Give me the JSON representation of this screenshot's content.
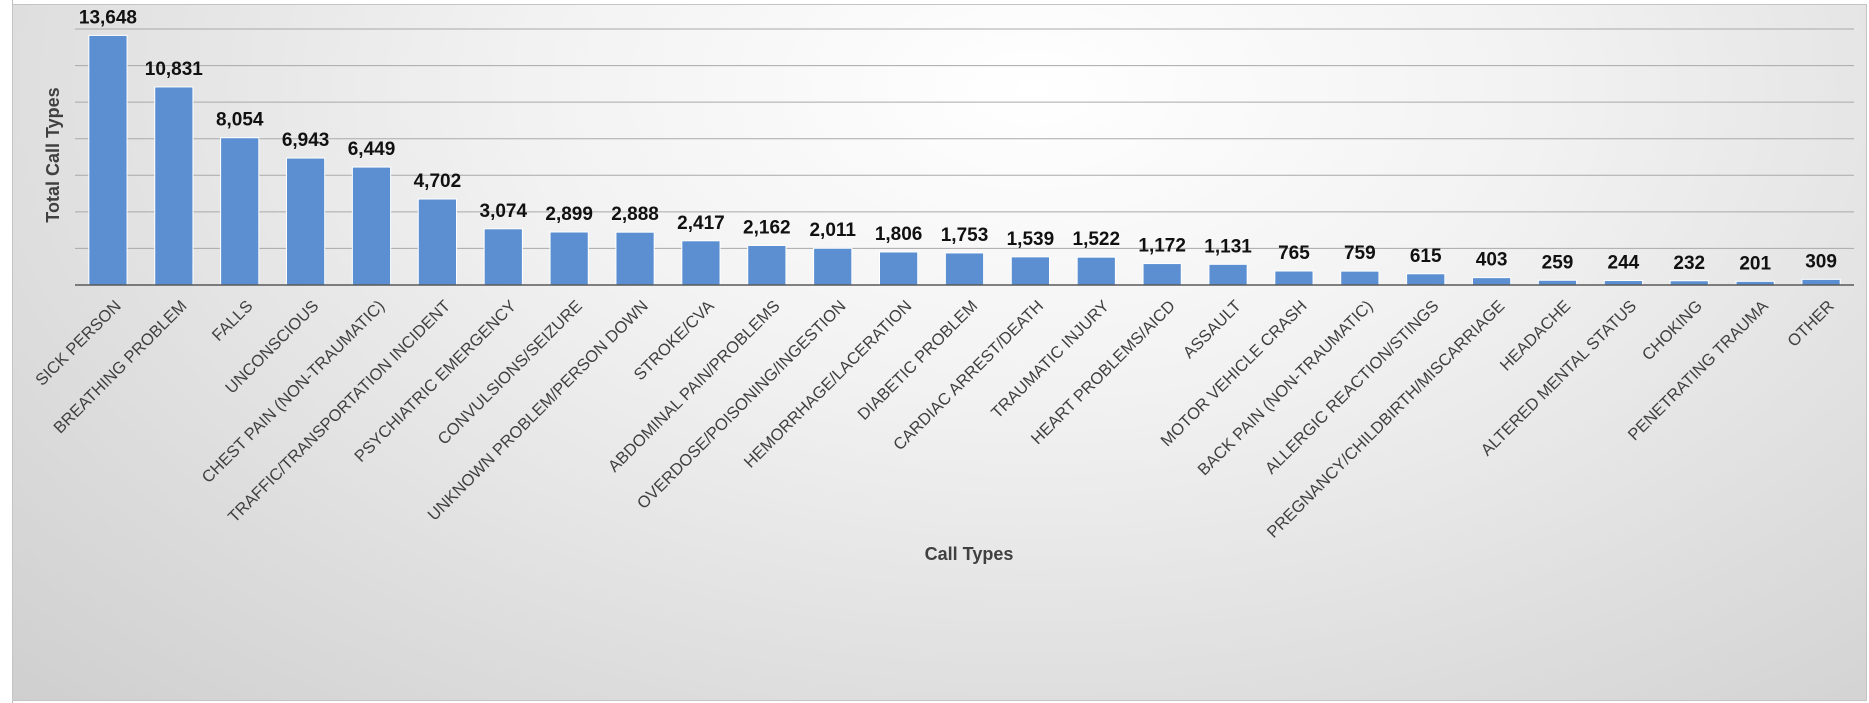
{
  "chart_data": {
    "type": "bar",
    "title": "",
    "xlabel": "Call Types",
    "ylabel": "Total Call Types",
    "ylim": [
      0,
      14000
    ],
    "grid": true,
    "legend": "none",
    "bar_color": "#5b8fd1",
    "categories": [
      "SICK PERSON",
      "BREATHING PROBLEM",
      "FALLS",
      "UNCONSCIOUS",
      "CHEST PAIN (NON-TRAUMATIC)",
      "TRAFFIC/TRANSPORTATION INCIDENT",
      "PSYCHIATRIC EMERGENCY",
      "CONVULSIONS/SEIZURE",
      "UNKNOWN PROBLEM/PERSON DOWN",
      "STROKE/CVA",
      "ABDOMINAL PAIN/PROBLEMS",
      "OVERDOSE/POISONING/INGESTION",
      "HEMORRHAGE/LACERATION",
      "DIABETIC PROBLEM",
      "CARDIAC ARREST/DEATH",
      "TRAUMATIC INJURY",
      "HEART PROBLEMS/AICD",
      "ASSAULT",
      "MOTOR VEHICLE CRASH",
      "BACK PAIN (NON-TRAUMATIC)",
      "ALLERGIC REACTION/STINGS",
      "PREGNANCY/CHILDBIRTH/MISCARRIAGE",
      "HEADACHE",
      "ALTERED MENTAL STATUS",
      "CHOKING",
      "PENETRATING TRAUMA",
      "OTHER"
    ],
    "values": [
      13648,
      10831,
      8054,
      6943,
      6449,
      4702,
      3074,
      2899,
      2888,
      2417,
      2162,
      2011,
      1806,
      1753,
      1539,
      1522,
      1172,
      1131,
      765,
      759,
      615,
      403,
      259,
      244,
      232,
      201,
      309
    ],
    "data_labels": [
      "13,648",
      "10,831",
      "8,054",
      "6,943",
      "6,449",
      "4,702",
      "3,074",
      "2,899",
      "2,888",
      "2,417",
      "2,162",
      "2,011",
      "1,806",
      "1,753",
      "1,539",
      "1,522",
      "1,172",
      "1,131",
      "765",
      "759",
      "615",
      "403",
      "259",
      "244",
      "232",
      "201",
      "309"
    ]
  }
}
